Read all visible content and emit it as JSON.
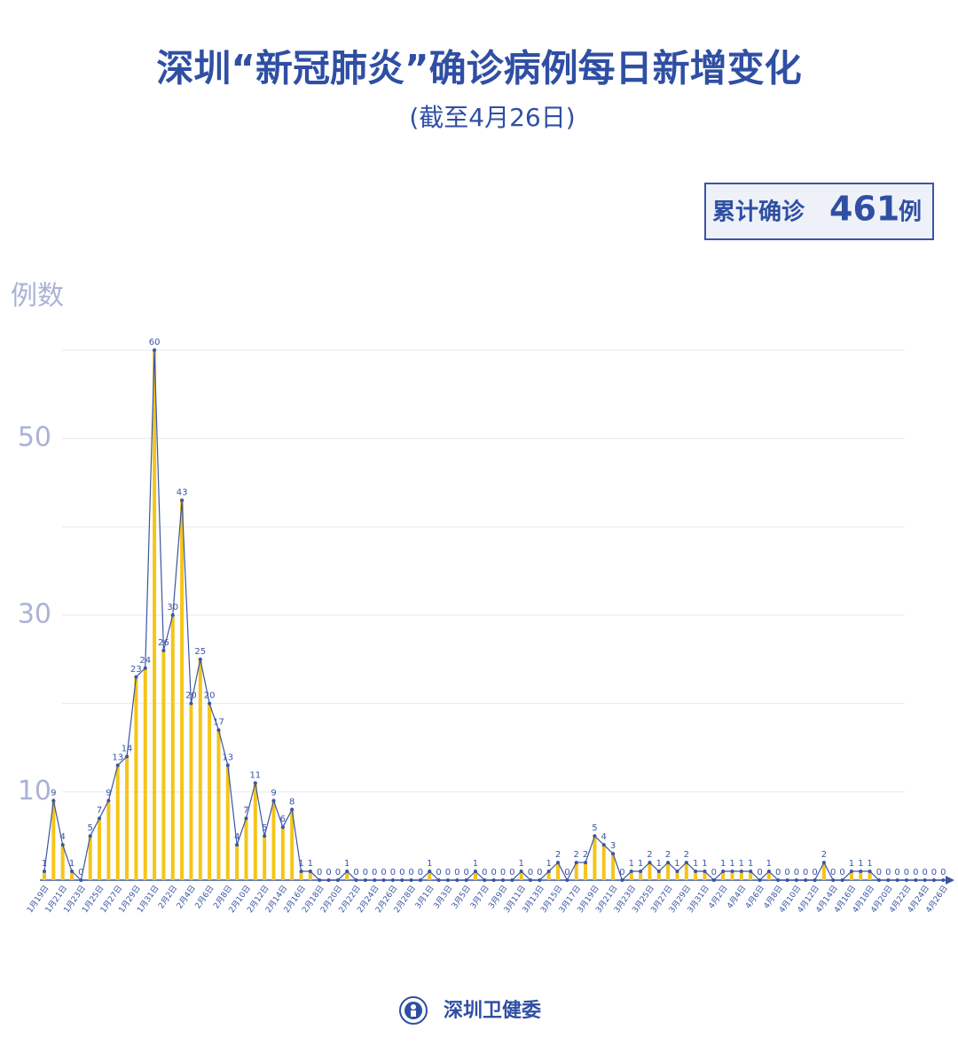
{
  "title": "深圳“新冠肺炎”确诊病例每日新增变化",
  "subtitle": "(截至4月26日)",
  "total_label": "累计确诊",
  "total": 461,
  "total_unit": "例",
  "footer": "深圳卫健委",
  "chart_data": {
    "type": "bar",
    "line": true,
    "y_label": "例数",
    "bar_color": "#f5c518",
    "line_color": "#3a55a4",
    "ylim": [
      0,
      60
    ],
    "yticks": [
      10,
      30,
      50
    ],
    "ygrid": [
      10,
      20,
      30,
      40,
      50,
      60
    ],
    "categories": [
      "1月19日",
      null,
      "1月21日",
      null,
      "1月23日",
      null,
      "1月25日",
      null,
      "1月27日",
      null,
      "1月29日",
      null,
      "1月31日",
      null,
      "2月2日",
      null,
      "2月4日",
      null,
      "2月6日",
      null,
      "2月8日",
      null,
      "2月10日",
      null,
      "2月12日",
      null,
      "2月14日",
      null,
      "2月16日",
      null,
      "2月18日",
      null,
      "2月20日",
      null,
      "2月22日",
      null,
      "2月24日",
      null,
      "2月26日",
      null,
      "2月28日",
      null,
      "3月1日",
      null,
      "3月3日",
      null,
      "3月5日",
      null,
      "3月7日",
      null,
      "3月9日",
      null,
      "3月11日",
      null,
      "3月13日",
      null,
      "3月15日",
      null,
      "3月17日",
      null,
      "3月19日",
      null,
      "3月21日",
      null,
      "3月23日",
      null,
      "3月25日",
      null,
      "3月27日",
      null,
      "3月29日",
      null,
      "3月31日",
      null,
      "4月2日",
      null,
      "4月4日",
      null,
      "4月6日",
      null,
      "4月8日",
      null,
      "4月10日",
      null,
      "4月12日",
      null,
      "4月14日",
      null,
      "4月16日",
      null,
      "4月18日",
      null,
      "4月20日",
      null,
      "4月22日",
      null,
      "4月24日",
      null,
      "4月26日"
    ],
    "values": [
      1,
      9,
      4,
      1,
      0,
      5,
      7,
      9,
      13,
      14,
      23,
      24,
      60,
      26,
      30,
      43,
      20,
      25,
      20,
      17,
      13,
      4,
      7,
      11,
      5,
      9,
      6,
      8,
      1,
      1,
      0,
      0,
      0,
      1,
      0,
      0,
      0,
      0,
      0,
      0,
      0,
      0,
      1,
      0,
      0,
      0,
      0,
      1,
      0,
      0,
      0,
      0,
      1,
      0,
      0,
      1,
      2,
      0,
      2,
      2,
      5,
      4,
      3,
      0,
      1,
      1,
      2,
      1,
      2,
      1,
      2,
      1,
      1,
      0,
      1,
      1,
      1,
      1,
      0,
      1,
      0,
      0,
      0,
      0,
      0,
      2,
      0,
      0,
      1,
      1,
      1,
      0,
      0,
      0,
      0,
      0,
      0,
      0,
      0
    ]
  }
}
